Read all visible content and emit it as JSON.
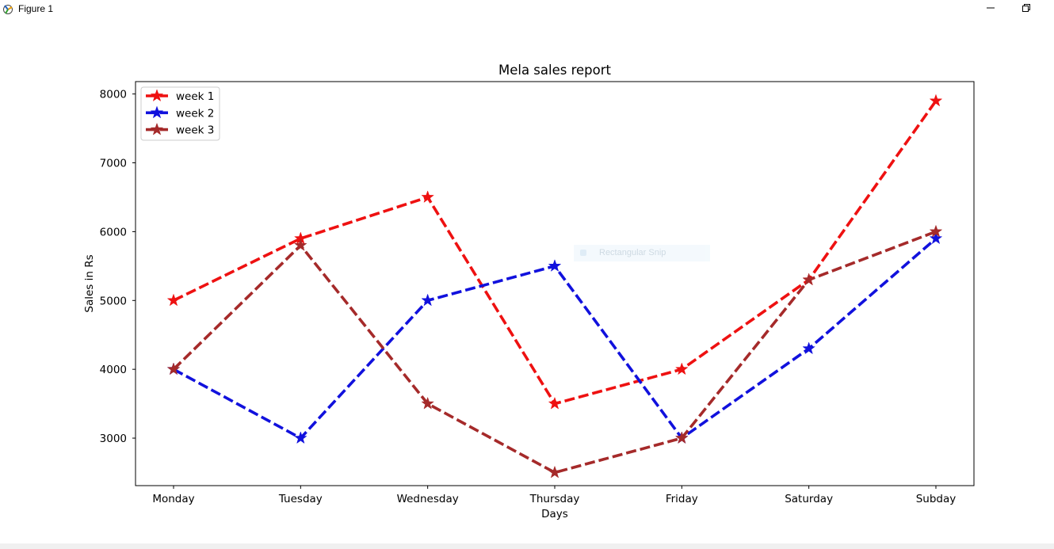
{
  "window": {
    "title": "Figure 1",
    "icon": "matplotlib-figure-icon"
  },
  "controls": {
    "minimize_icon": "minimize-icon",
    "restore_icon": "restore-icon"
  },
  "overlay": {
    "label": "Rectangular Snip",
    "icon": "snip-icon"
  },
  "chart_data": {
    "type": "line",
    "title": "Mela sales report",
    "xlabel": "Days",
    "ylabel": "Sales in Rs",
    "categories": [
      "Monday",
      "Tuesday",
      "Wednesday",
      "Thursday",
      "Friday",
      "Saturday",
      "Subday"
    ],
    "yticks": [
      3000,
      4000,
      5000,
      6000,
      7000,
      8000
    ],
    "ylim": [
      2310,
      8180
    ],
    "grid": false,
    "legend_position": "top-left",
    "line_style": "dashed",
    "marker": "star",
    "series": [
      {
        "name": "week 1",
        "color": "#ee1111",
        "values": [
          5000,
          5900,
          6500,
          3500,
          4000,
          5300,
          7900
        ]
      },
      {
        "name": "week 2",
        "color": "#1111dd",
        "values": [
          4000,
          3000,
          5000,
          5500,
          3000,
          4300,
          5900
        ]
      },
      {
        "name": "week 3",
        "color": "#a52a2a",
        "values": [
          4000,
          5800,
          3500,
          2500,
          3000,
          5300,
          6000
        ]
      }
    ]
  }
}
